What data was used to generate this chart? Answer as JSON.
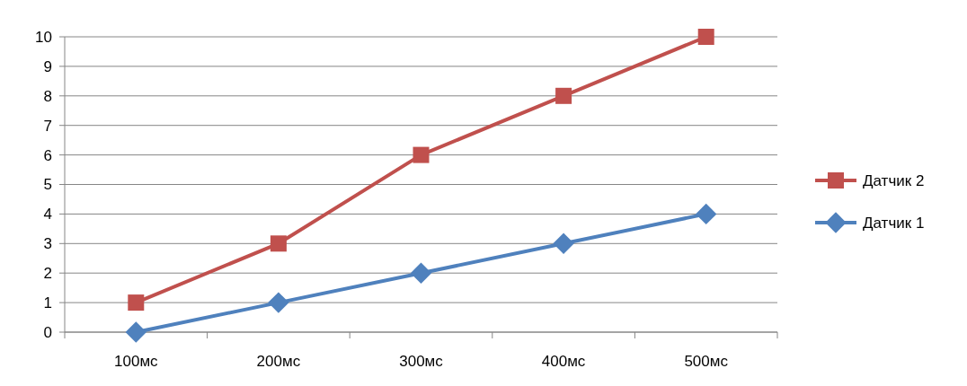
{
  "chart_data": {
    "type": "line",
    "categories": [
      "100мс",
      "200мс",
      "300мс",
      "400мс",
      "500мс"
    ],
    "series": [
      {
        "name": "Датчик 2",
        "color": "#c0504d",
        "marker": "square",
        "values": [
          1,
          3,
          6,
          8,
          10
        ]
      },
      {
        "name": "Датчик 1",
        "color": "#4f81bd",
        "marker": "diamond",
        "values": [
          0,
          1,
          2,
          3,
          4
        ]
      }
    ],
    "ylim": [
      0,
      10
    ],
    "yticks": [
      0,
      1,
      2,
      3,
      4,
      5,
      6,
      7,
      8,
      9,
      10
    ],
    "grid": "y",
    "legend": "right",
    "line_style": "solid"
  }
}
